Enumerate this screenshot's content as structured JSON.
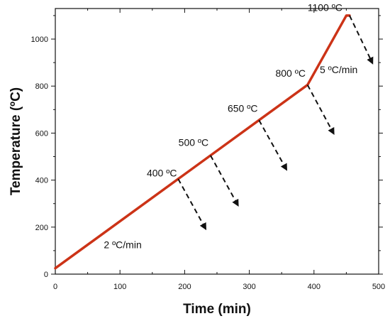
{
  "chart_data": {
    "type": "line",
    "title": "",
    "xlabel": "Time (min)",
    "ylabel": "Temperature (ºC)",
    "xlim": [
      0,
      500
    ],
    "ylim": [
      0,
      1130
    ],
    "x_ticks": [
      "0",
      "100",
      "200",
      "300",
      "400",
      "500"
    ],
    "y_ticks": [
      "0",
      "200",
      "400",
      "600",
      "800",
      "1000"
    ],
    "grid": false,
    "legend": "none",
    "series": [
      {
        "x": [
          0,
          190,
          240,
          315,
          390,
          450,
          455
        ],
        "y": [
          25,
          405,
          505,
          655,
          805,
          1100,
          1100
        ],
        "color": "#cc3317"
      }
    ],
    "cooling_arrows": [
      {
        "from": [
          190,
          405
        ],
        "to": [
          232,
          195
        ]
      },
      {
        "from": [
          240,
          505
        ],
        "to": [
          282,
          295
        ]
      },
      {
        "from": [
          315,
          655
        ],
        "to": [
          357,
          447
        ]
      },
      {
        "from": [
          390,
          805
        ],
        "to": [
          430,
          600
        ]
      },
      {
        "from": [
          455,
          1100
        ],
        "to": [
          490,
          900
        ]
      }
    ],
    "annotations": [
      {
        "text": "2 ºC/min",
        "x": 75,
        "y": 110,
        "anchor": "start"
      },
      {
        "text": "400 ºC",
        "x": 188,
        "y": 415,
        "anchor": "end"
      },
      {
        "text": "500 ºC",
        "x": 237,
        "y": 545,
        "anchor": "end"
      },
      {
        "text": "650 ºC",
        "x": 313,
        "y": 690,
        "anchor": "end"
      },
      {
        "text": "800 ºC",
        "x": 387,
        "y": 840,
        "anchor": "end"
      },
      {
        "text": "5 ºC/min",
        "x": 409,
        "y": 855,
        "anchor": "start"
      },
      {
        "text": "1100 ºC",
        "x": 444,
        "y": 1120,
        "anchor": "end"
      }
    ]
  }
}
